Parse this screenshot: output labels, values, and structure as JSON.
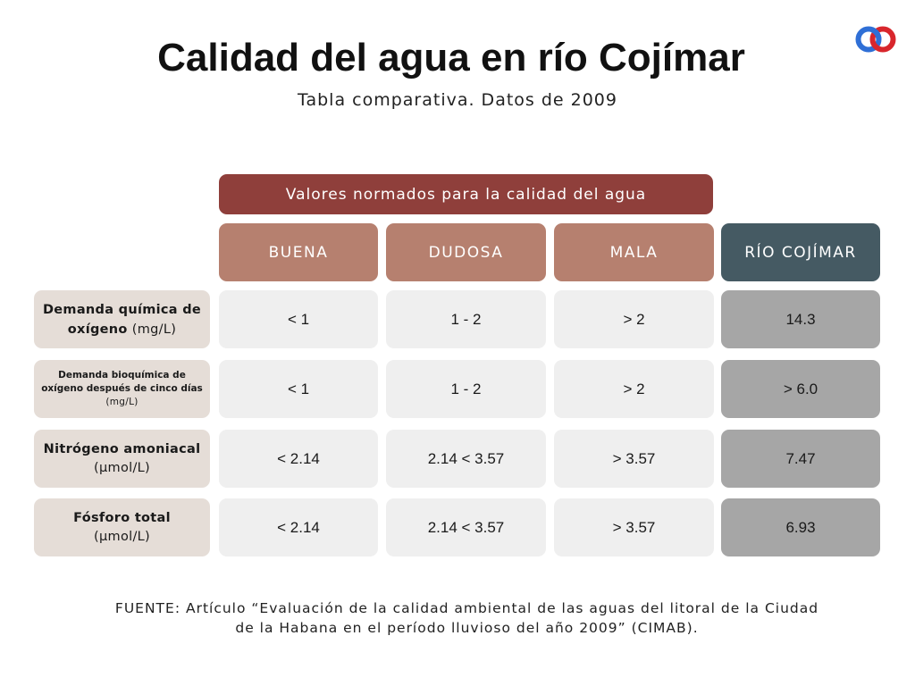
{
  "title": "Calidad del agua en río Cojímar",
  "subtitle": "Tabla comparativa. Datos de 2009",
  "norm_header": "Valores normados para la calidad del agua",
  "columns": [
    "BUENA",
    "DUDOSA",
    "MALA",
    "RÍO COJÍMAR"
  ],
  "rows": [
    {
      "label": "Demanda química de oxígeno",
      "unit": "(mg/L)",
      "values": [
        "< 1",
        "1 - 2",
        "> 2",
        "14.3"
      ]
    },
    {
      "label": "Demanda bioquímica de oxígeno después de cinco días",
      "unit": "(mg/L)",
      "values": [
        "< 1",
        "1 - 2",
        "> 2",
        "> 6.0"
      ]
    },
    {
      "label": "Nitrógeno amoniacal",
      "unit": "(μmol/L)",
      "values": [
        "< 2.14",
        "2.14 < 3.57",
        "> 3.57",
        "7.47"
      ]
    },
    {
      "label": "Fósforo total",
      "unit": "(μmol/L)",
      "values": [
        "< 2.14",
        "2.14 < 3.57",
        "> 3.57",
        "6.93"
      ]
    }
  ],
  "source": "FUENTE: Artículo “Evaluación de la calidad ambiental de las aguas del litoral de la Ciudad de la Habana en el período lluvioso del año 2009” (CIMAB).",
  "colors": {
    "norm_header": "#8f3f3b",
    "column_header": "#b6806f",
    "rio_header": "#455a63",
    "row_label": "#e5ddd7",
    "value_cell": "#efefef",
    "rio_value_cell": "#a6a6a6",
    "logo_blue": "#2f6fd6",
    "logo_red": "#d8262c"
  },
  "logo": {
    "icon": "interlocking-rings-logo-icon"
  }
}
